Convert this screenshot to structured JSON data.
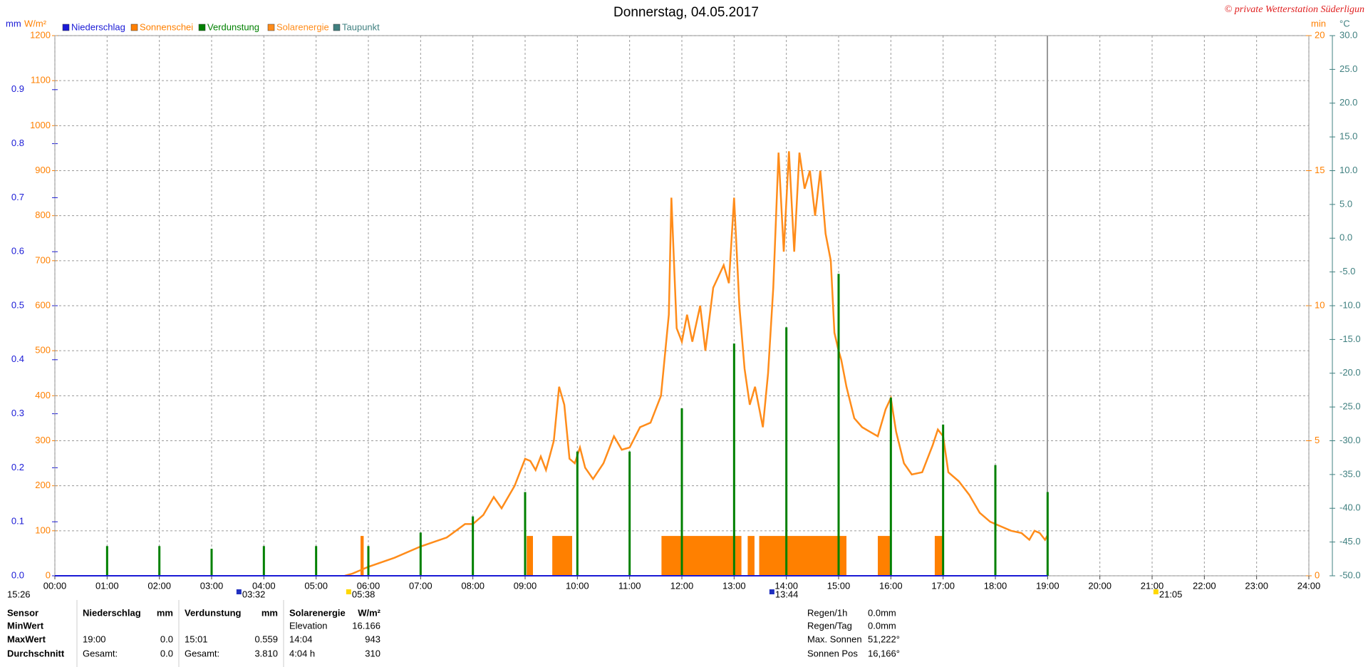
{
  "chart_data": {
    "type": "combo",
    "title": "Donnerstag, 04.05.2017",
    "copyright": "© private Wetterstation Süderligun",
    "grid": true,
    "xlim": [
      0,
      24
    ],
    "xticks": [
      {
        "value": 0,
        "label": "00:00"
      },
      {
        "value": 1,
        "label": "01:00"
      },
      {
        "value": 2,
        "label": "02:00"
      },
      {
        "value": 3,
        "label": "03:00"
      },
      {
        "value": 4,
        "label": "04:00"
      },
      {
        "value": 5,
        "label": "05:00"
      },
      {
        "value": 6,
        "label": "06:00"
      },
      {
        "value": 7,
        "label": "07:00"
      },
      {
        "value": 8,
        "label": "08:00"
      },
      {
        "value": 9,
        "label": "09:00"
      },
      {
        "value": 10,
        "label": "10:00"
      },
      {
        "value": 11,
        "label": "11:00"
      },
      {
        "value": 12,
        "label": "12:00"
      },
      {
        "value": 13,
        "label": "13:00"
      },
      {
        "value": 14,
        "label": "14:00"
      },
      {
        "value": 15,
        "label": "15:00"
      },
      {
        "value": 16,
        "label": "16:00"
      },
      {
        "value": 17,
        "label": "17:00"
      },
      {
        "value": 18,
        "label": "18:00"
      },
      {
        "value": 19,
        "label": "19:00"
      },
      {
        "value": 20,
        "label": "20:00"
      },
      {
        "value": 21,
        "label": "21:00"
      },
      {
        "value": 22,
        "label": "22:00"
      },
      {
        "value": 23,
        "label": "23:00"
      },
      {
        "value": 24,
        "label": "24:00"
      }
    ],
    "ylabel": "W/m²",
    "ylim": [
      0,
      1200
    ],
    "yticks": [
      0,
      100,
      200,
      300,
      400,
      500,
      600,
      700,
      800,
      900,
      1000,
      1100,
      1200
    ],
    "y2label": "min",
    "y2lim": [
      0,
      20
    ],
    "y2ticks": [
      0,
      5,
      10,
      15,
      20
    ],
    "y3label": "mm",
    "y3lim": [
      0,
      1
    ],
    "y3ticks": [
      {
        "value": 0,
        "label": "0.0"
      },
      0.1,
      0.2,
      0.3,
      0.4,
      0.5,
      0.6,
      0.7,
      0.8,
      0.9
    ],
    "y4label": "°C",
    "y4lim": [
      -50,
      30
    ],
    "y4ticks": [
      {
        "value": -50,
        "label": "-50.0"
      },
      {
        "value": -45,
        "label": "-45.0"
      },
      {
        "value": -40,
        "label": "-40.0"
      },
      {
        "value": -35,
        "label": "-35.0"
      },
      {
        "value": -30,
        "label": "-30.0"
      },
      {
        "value": -25,
        "label": "-25.0"
      },
      {
        "value": -20,
        "label": "-20.0"
      },
      {
        "value": -15,
        "label": "-15.0"
      },
      {
        "value": -10,
        "label": "-10.0"
      },
      {
        "value": -5,
        "label": "-5.0"
      },
      {
        "value": 0,
        "label": "0.0"
      },
      {
        "value": 5,
        "label": "5.0"
      },
      {
        "value": 10,
        "label": "10.0"
      },
      {
        "value": 15,
        "label": "15.0"
      },
      {
        "value": 20,
        "label": "20.0"
      },
      {
        "value": 25,
        "label": "25.0"
      },
      {
        "value": 30,
        "label": "30.0"
      }
    ],
    "series": [
      {
        "name": "Niederschlag",
        "color": "#1a1ad6",
        "type": "line",
        "axis": "y3",
        "x": [
          0,
          19
        ],
        "values": [
          0,
          0
        ]
      },
      {
        "name": "Sonnenschei",
        "color": "#ff8000",
        "type": "interval",
        "axis": "y2",
        "x_start": [
          5.85,
          9.03,
          9.52,
          11.61,
          13.26,
          13.48,
          15.75,
          16.84
        ],
        "x_end": [
          5.91,
          9.15,
          9.9,
          13.14,
          13.39,
          15.15,
          15.98,
          16.99
        ],
        "values": [
          1,
          1,
          1,
          1,
          1,
          1,
          1,
          1
        ]
      },
      {
        "name": "Verdunstung",
        "color": "#008000",
        "type": "spike",
        "axis": "y3",
        "x": [
          1,
          2,
          3,
          4,
          5,
          6,
          7,
          8,
          9,
          10,
          11,
          12,
          13,
          14,
          15,
          16,
          17,
          18,
          19
        ],
        "values": [
          0.055,
          0.055,
          0.05,
          0.055,
          0.055,
          0.055,
          0.08,
          0.11,
          0.155,
          0.23,
          0.23,
          0.31,
          0.43,
          0.46,
          0.559,
          0.33,
          0.28,
          0.205,
          0.155
        ]
      },
      {
        "name": "Solarenergie",
        "color": "#ff8c1a",
        "type": "line",
        "axis": "y",
        "x": [
          5.55,
          5.7,
          6.0,
          6.5,
          7.0,
          7.5,
          7.85,
          8.0,
          8.2,
          8.4,
          8.55,
          8.8,
          9.0,
          9.1,
          9.2,
          9.3,
          9.4,
          9.55,
          9.65,
          9.75,
          9.85,
          9.95,
          10.05,
          10.15,
          10.3,
          10.5,
          10.7,
          10.85,
          11.0,
          11.2,
          11.4,
          11.6,
          11.75,
          11.8,
          11.9,
          12.0,
          12.1,
          12.2,
          12.35,
          12.45,
          12.6,
          12.8,
          12.9,
          13.0,
          13.1,
          13.2,
          13.3,
          13.4,
          13.55,
          13.65,
          13.75,
          13.85,
          13.95,
          14.05,
          14.15,
          14.25,
          14.35,
          14.45,
          14.55,
          14.65,
          14.75,
          14.85,
          14.92,
          15.0,
          15.05,
          15.15,
          15.3,
          15.45,
          15.6,
          15.75,
          15.9,
          16.0,
          16.1,
          16.25,
          16.4,
          16.6,
          16.8,
          16.9,
          17.0,
          17.1,
          17.3,
          17.5,
          17.7,
          17.9,
          18.1,
          18.3,
          18.5,
          18.65,
          18.75,
          18.85,
          18.95,
          19.0
        ],
        "values": [
          0,
          5,
          20,
          40,
          65,
          85,
          115,
          115,
          135,
          175,
          150,
          200,
          260,
          255,
          235,
          265,
          235,
          300,
          420,
          380,
          260,
          250,
          285,
          240,
          215,
          250,
          310,
          280,
          285,
          330,
          340,
          400,
          580,
          840,
          550,
          520,
          580,
          520,
          600,
          500,
          640,
          690,
          650,
          840,
          600,
          460,
          380,
          420,
          330,
          450,
          640,
          940,
          720,
          943,
          720,
          940,
          860,
          900,
          800,
          900,
          760,
          700,
          540,
          500,
          480,
          420,
          350,
          330,
          320,
          310,
          370,
          395,
          320,
          250,
          225,
          230,
          290,
          325,
          310,
          230,
          210,
          180,
          140,
          120,
          110,
          100,
          95,
          80,
          100,
          95,
          80,
          90
        ]
      },
      {
        "name": "Taupunkt",
        "color": "#408080",
        "type": "line",
        "axis": "y4",
        "x": [],
        "values": []
      }
    ],
    "moon_label": "15:26",
    "annotations": [
      {
        "label": "03:32",
        "x": 3.53
      },
      {
        "label": "05:38",
        "x": 5.63
      },
      {
        "label": "13:44",
        "x": 13.73
      },
      {
        "label": "21:05",
        "x": 21.08
      }
    ]
  },
  "table": {
    "rows": [
      [
        "Sensor",
        "Niederschlag",
        "mm",
        "Verdunstung",
        "mm",
        "Solarenergie",
        "W/m²"
      ],
      [
        "MinWert",
        null,
        null,
        null,
        null,
        "Elevation",
        "16.166"
      ],
      [
        "MaxWert",
        "19:00",
        "0.0",
        "15:01",
        "0.559",
        "14:04",
        "943"
      ],
      [
        "Durchschnitt",
        "Gesamt:",
        "0.0",
        "Gesamt:",
        "3.810",
        "4:04 h",
        "310"
      ]
    ]
  },
  "status": [
    [
      "Regen/1h",
      "0.0mm"
    ],
    [
      "Regen/Tag",
      "0.0mm"
    ],
    [
      "Max. Sonnen",
      "51,222°"
    ],
    [
      "Sonnen Pos",
      "16,166°"
    ]
  ]
}
